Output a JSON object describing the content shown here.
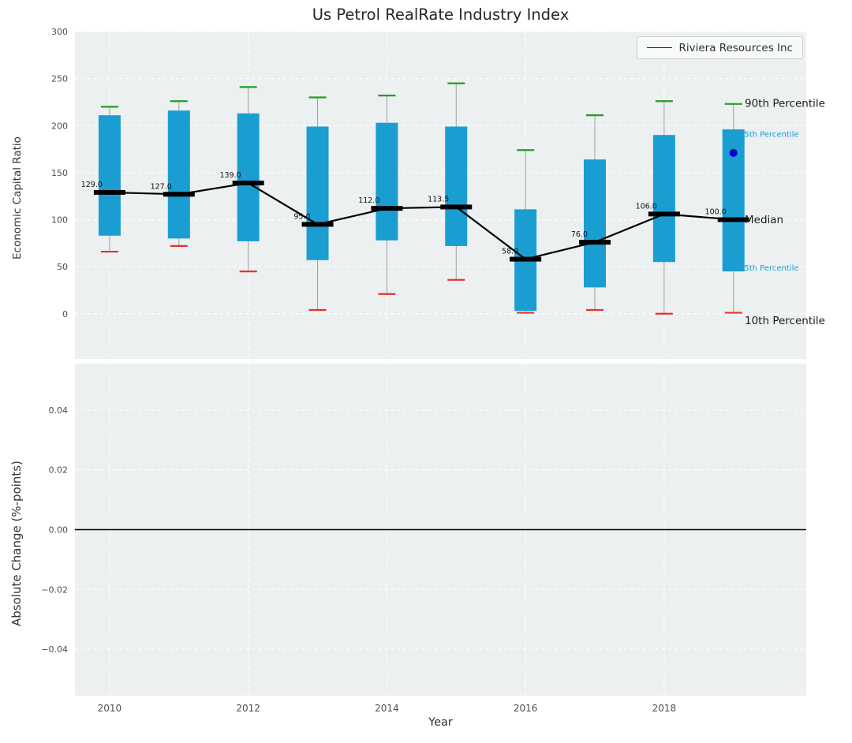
{
  "title": "Us Petrol RealRate Industry Index",
  "xlabel": "Year",
  "legend": {
    "label": "Riviera Resources Inc",
    "line_color": "#0000cd"
  },
  "colors": {
    "figure_bg": "#ffffff",
    "axes_bg": "#ecf0f1",
    "grid": "#ffffff",
    "bar": "#1a9ed1",
    "p90_cap": "#1fa11f",
    "p10_cap": "#e8312a",
    "whisker": "#9e9e9e",
    "median": "#000000",
    "tick_label": "#46505a",
    "annotation": "#111111"
  },
  "top_plot": {
    "ylabel": "Economic Capital Ratio",
    "yticks": [
      0,
      50,
      100,
      150,
      200,
      250,
      300
    ],
    "ytick_labels": [
      "0",
      "50",
      "100",
      "150",
      "200",
      "250",
      "300"
    ],
    "percentile_labels": [
      {
        "text": "90th Percentile",
        "value": 224,
        "color": "#1a1a1a",
        "size": 13.5
      },
      {
        "text": "75th Percentile",
        "value": 191,
        "color": "#1a9ed1",
        "size": 10
      },
      {
        "text": "Median",
        "value": 100,
        "color": "#1a1a1a",
        "size": 13.5
      },
      {
        "text": "25th Percentile",
        "value": 49,
        "color": "#1a9ed1",
        "size": 10
      },
      {
        "text": "10th Percentile",
        "value": -7,
        "color": "#1a1a1a",
        "size": 13.5
      }
    ]
  },
  "bottom_plot": {
    "ylabel": "Absolute Change (%-points)",
    "yticks": [
      0.04,
      0.02,
      0,
      -0.02,
      -0.04
    ],
    "ytick_labels": [
      "0.04",
      "0.02",
      "0.00",
      "−0.02",
      "−0.04"
    ]
  },
  "xticks": [
    2010,
    2012,
    2014,
    2016,
    2018
  ],
  "xtick_labels": [
    "2010",
    "2012",
    "2014",
    "2016",
    "2018"
  ],
  "chart_data": {
    "type": "box-percentile-timeseries-with-median-line",
    "title": "Us Petrol RealRate Industry Index",
    "xlabel": "Year",
    "ylabel_top": "Economic Capital Ratio",
    "ylabel_bottom": "Absolute Change (%-points)",
    "xlim": [
      2009.5,
      2020.05
    ],
    "top_ylim": [
      -48,
      300
    ],
    "bottom_ylim": [
      -0.0555,
      0.0555
    ],
    "grid": true,
    "legend_position": "upper right",
    "years": [
      2010,
      2011,
      2012,
      2013,
      2014,
      2015,
      2016,
      2017,
      2018,
      2019
    ],
    "median": [
      129,
      127,
      139,
      95,
      112,
      113.5,
      58,
      76,
      106,
      100
    ],
    "median_labels": [
      "129.0",
      "127.0",
      "139.0",
      "95.0",
      "112.0",
      "113.5",
      "58.0",
      "76.0",
      "106.0",
      "100.0"
    ],
    "p25": [
      83,
      80,
      77,
      57,
      78,
      72,
      3,
      28,
      55,
      45
    ],
    "p75": [
      211,
      216,
      213,
      199,
      203,
      199,
      111,
      164,
      190,
      196
    ],
    "p10": [
      66,
      72,
      45,
      4,
      21,
      36,
      1,
      4,
      0,
      1
    ],
    "p90": [
      220,
      226,
      241,
      230,
      232,
      245,
      174,
      211,
      226,
      223
    ],
    "company_point": {
      "name": "Riviera Resources Inc",
      "year": 2019,
      "value": 171,
      "color": "#0000cd"
    },
    "bottom_series": [],
    "bottom_zero_line": 0
  }
}
